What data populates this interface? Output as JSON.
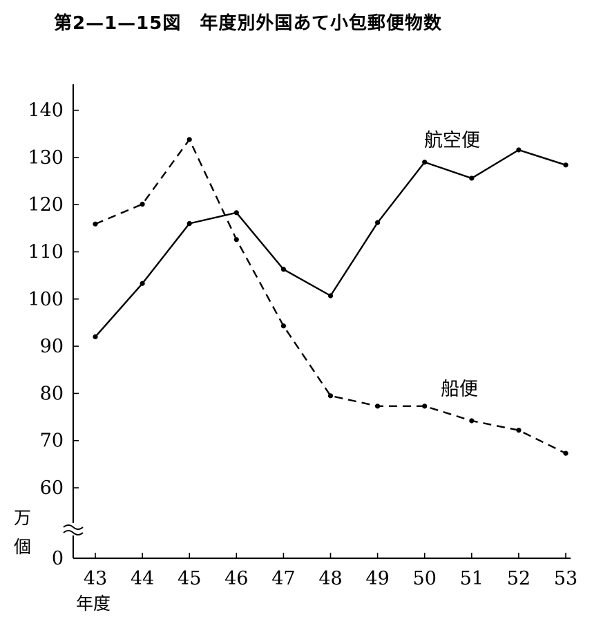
{
  "chart_data": {
    "type": "line",
    "title": "第2—1—15図　年度別外国あて小包郵便物数",
    "xlabel": "年度",
    "ylabel_lines": [
      "万",
      "個"
    ],
    "categories": [
      "43",
      "44",
      "45",
      "46",
      "47",
      "48",
      "49",
      "50",
      "51",
      "52",
      "53"
    ],
    "yticks": [
      0,
      60,
      70,
      80,
      90,
      100,
      110,
      120,
      130,
      140
    ],
    "ylim": [
      0,
      140
    ],
    "axis_break": true,
    "grid": false,
    "series": [
      {
        "name": "航空便",
        "style": "solid",
        "values": [
          92,
          103.3,
          116,
          118.3,
          106.3,
          100.7,
          116.2,
          129,
          125.6,
          131.6,
          128.4
        ]
      },
      {
        "name": "船便",
        "style": "dashed",
        "values": [
          115.9,
          120.1,
          133.8,
          112.6,
          94.3,
          79.5,
          77.3,
          77.3,
          74.2,
          72.2,
          67.3
        ]
      }
    ]
  }
}
